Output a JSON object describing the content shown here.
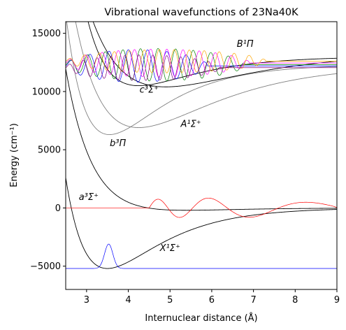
{
  "chart_data": {
    "type": "line",
    "title": "Vibrational wavefunctions of 23Na40K",
    "xlabel": "Internuclear distance (Å)",
    "ylabel": "Energy (cm⁻¹)",
    "xlim": [
      2.5,
      9.0
    ],
    "ylim": [
      -7000,
      16000
    ],
    "xticks": [
      3,
      4,
      5,
      6,
      7,
      8,
      9
    ],
    "yticks": [
      -5000,
      0,
      5000,
      10000,
      15000
    ],
    "grid": false,
    "legend": "none",
    "potentials": [
      {
        "state": "X¹Σ⁺",
        "label": "X¹Σ⁺",
        "color": "#000000",
        "Te": -5200,
        "De": 5200,
        "re": 3.5,
        "a": 0.8,
        "label_at": [
          5.0,
          -3700
        ]
      },
      {
        "state": "a³Σ⁺",
        "label": "a³Σ⁺",
        "color": "#000000",
        "Te": -200,
        "De": 200,
        "re": 5.4,
        "a": 0.75,
        "label_at": [
          3.05,
          700
        ]
      },
      {
        "state": "b³Π",
        "label": "b³Π",
        "color": "#808080",
        "Te": 6300,
        "De": 6000,
        "re": 3.55,
        "a": 0.8,
        "label_at": [
          3.75,
          5300
        ]
      },
      {
        "state": "A¹Σ⁺",
        "label": "A¹Σ⁺",
        "color": "#808080",
        "Te": 6900,
        "De": 5400,
        "re": 4.25,
        "a": 0.55,
        "label_at": [
          5.5,
          6950
        ]
      },
      {
        "state": "c³Σ⁺",
        "label": "c³Σ⁺",
        "color": "#000000",
        "Te": 10500,
        "De": 2500,
        "re": 4.25,
        "a": 0.75,
        "label_at": [
          4.5,
          9900
        ]
      },
      {
        "state": "B¹Π",
        "label": "B¹Π",
        "color": "#000000",
        "Te": 10400,
        "De": 2900,
        "re": 4.9,
        "a": 0.5,
        "label_at": [
          6.8,
          13850
        ]
      }
    ],
    "wavefunctions": [
      {
        "color": "#0000ff",
        "baseline": -5200,
        "type": "gauss",
        "center": 3.53,
        "width": 0.14,
        "amplitude": 2100
      },
      {
        "color": "#ff0000",
        "baseline": 0,
        "type": "oscillating",
        "x_start": 3.0,
        "x_end": 9.0,
        "node_start": 4.5,
        "amplitude": 850
      },
      {
        "color": "#0000ff",
        "baseline": 12200,
        "type": "oscillating",
        "x_start": 2.5,
        "x_end": 5.9,
        "amplitude": 1400
      },
      {
        "color": "#008000",
        "baseline": 12300,
        "type": "oscillating",
        "x_start": 2.5,
        "x_end": 6.8,
        "amplitude": 1400
      },
      {
        "color": "#ff00ff",
        "baseline": 12450,
        "type": "oscillating",
        "x_start": 2.5,
        "x_end": 6.9,
        "amplitude": 1200
      },
      {
        "color": "#ffa500",
        "baseline": 12600,
        "type": "oscillating",
        "x_start": 2.5,
        "x_end": 7.3,
        "amplitude": 1000
      },
      {
        "color": "#800080",
        "baseline": 12050,
        "type": "oscillating",
        "x_start": 2.5,
        "x_end": 6.2,
        "amplitude": 1100
      }
    ]
  }
}
